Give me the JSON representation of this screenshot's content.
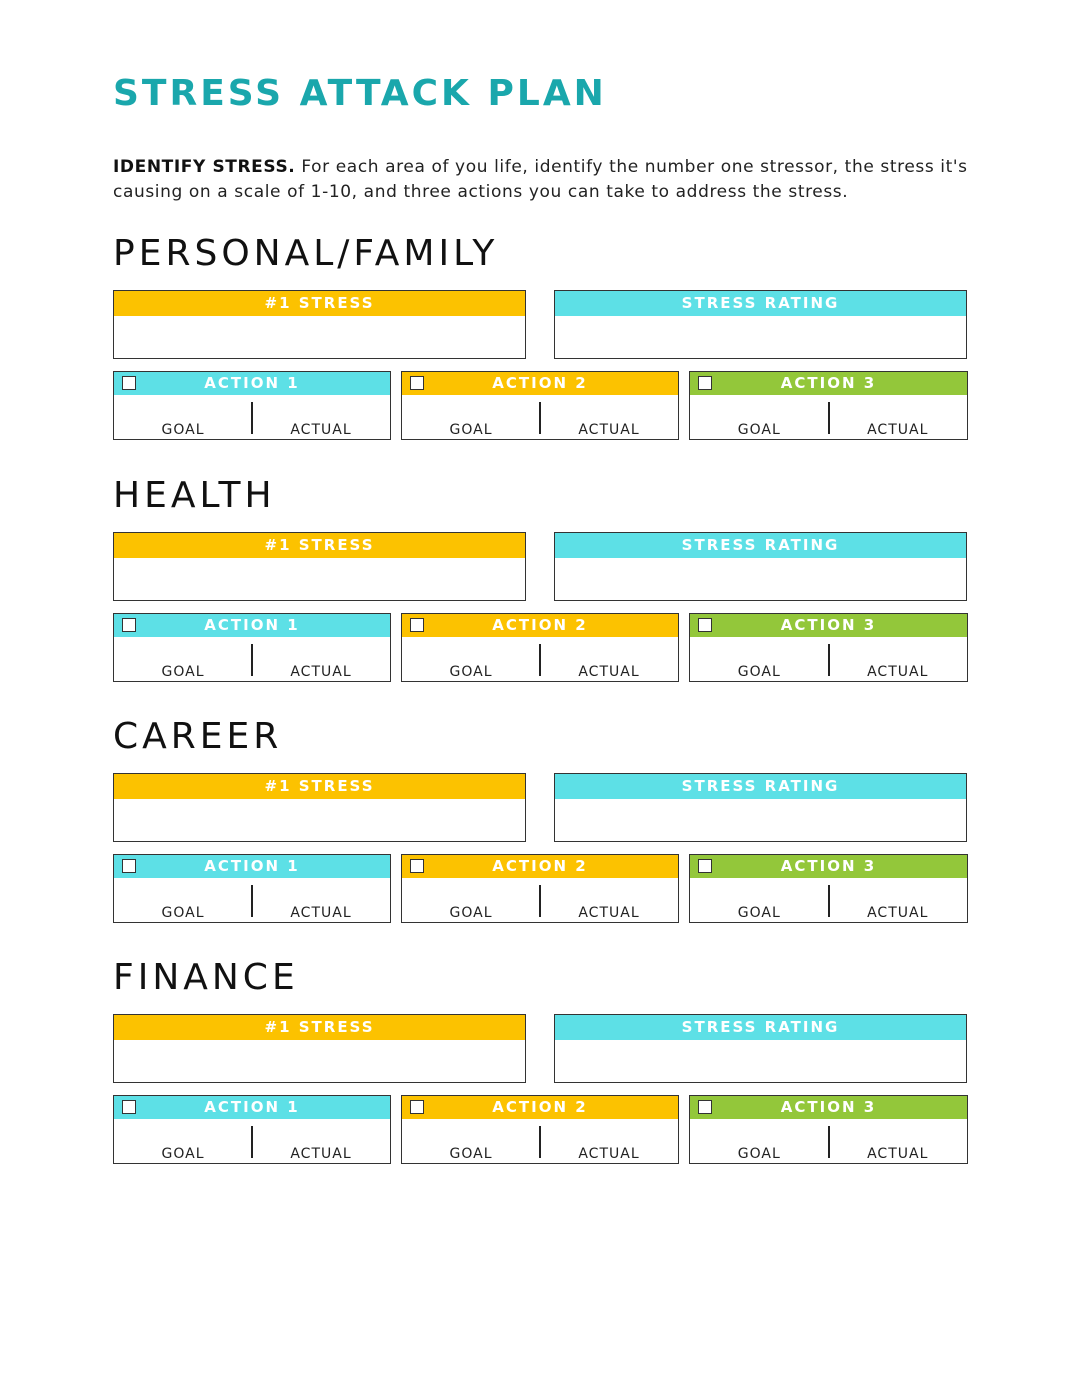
{
  "title": "STRESS ATTACK PLAN",
  "intro": {
    "lead": "IDENTIFY STRESS.",
    "text": " For each area of you life, identify the number one stressor, the stress it's causing on a scale of 1-10, and three actions you can take to address the stress."
  },
  "labels": {
    "stress": "#1 STRESS",
    "rating": "STRESS RATING",
    "action1": "ACTION 1",
    "action2": "ACTION 2",
    "action3": "ACTION 3",
    "goal": "GOAL",
    "actual": "ACTUAL"
  },
  "sections": [
    {
      "heading": "PERSONAL/FAMILY"
    },
    {
      "heading": "HEALTH"
    },
    {
      "heading": "CAREER"
    },
    {
      "heading": "FINANCE"
    }
  ],
  "colors": {
    "title": "#1aa7ac",
    "yellow": "#fcc200",
    "cyan": "#5de0e6",
    "green": "#93c73a"
  },
  "icons": {
    "checkbox": "empty-checkbox-icon"
  }
}
